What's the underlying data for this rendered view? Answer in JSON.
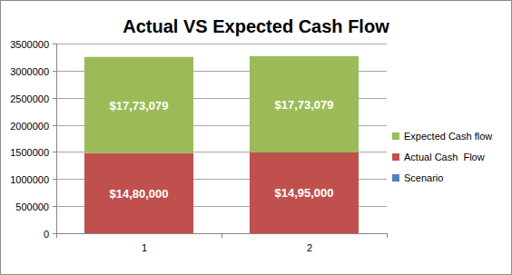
{
  "chart_data": {
    "type": "bar",
    "title": "Actual VS Expected Cash Flow",
    "stacked": true,
    "data_labels": true,
    "grid": true,
    "legend": "right",
    "categories": [
      "1",
      "2"
    ],
    "series": [
      {
        "name": "Scenario",
        "color": "#4f81bd",
        "values": [
          0,
          0
        ]
      },
      {
        "name": "Actual Cash  Flow",
        "color": "#c0504d",
        "values": [
          1480000,
          1495000
        ],
        "value_labels": [
          "$14,80,000",
          "$14,95,000"
        ]
      },
      {
        "name": "Expected Cash flow",
        "color": "#9bbb59",
        "values": [
          1773079,
          1773079
        ],
        "value_labels": [
          "$17,73,079",
          "$17,73,079"
        ]
      }
    ],
    "ylim": [
      0,
      3500000
    ],
    "yticks": [
      0,
      500000,
      1000000,
      1500000,
      2000000,
      2500000,
      3000000,
      3500000
    ]
  }
}
